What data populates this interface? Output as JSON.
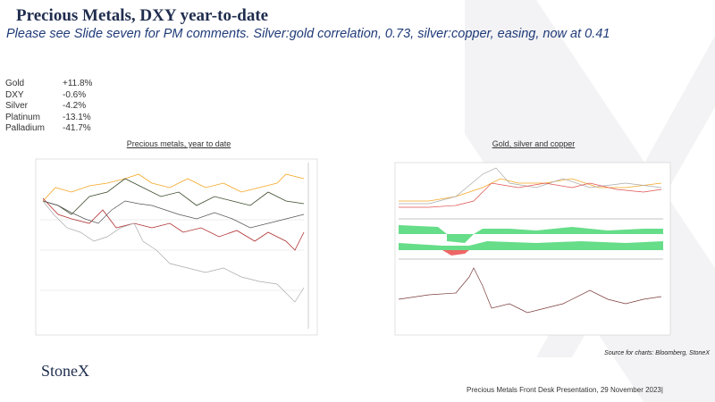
{
  "header": {
    "title": "Precious Metals, DXY year-to-date",
    "subtitle": "Please see Slide seven for PM comments.  Silver:gold correlation, 0.73, silver:copper, easing, now at 0.41"
  },
  "performance": {
    "rows": [
      [
        "Gold",
        "+11.8%"
      ],
      [
        "DXY",
        "-0.6%"
      ],
      [
        "Silver",
        "-4.2%"
      ],
      [
        "Platinum",
        "-13.1%"
      ],
      [
        "Palladium",
        "-41.7%"
      ]
    ]
  },
  "charts": [
    {
      "caption": "Precious metals, year to date"
    },
    {
      "caption": "Gold, silver and copper"
    }
  ],
  "source": "Source for charts: Bloomberg, StoneX",
  "logo": "StoneX",
  "footer": "Precious Metals Front Desk Presentation, 29 November 2023|"
}
